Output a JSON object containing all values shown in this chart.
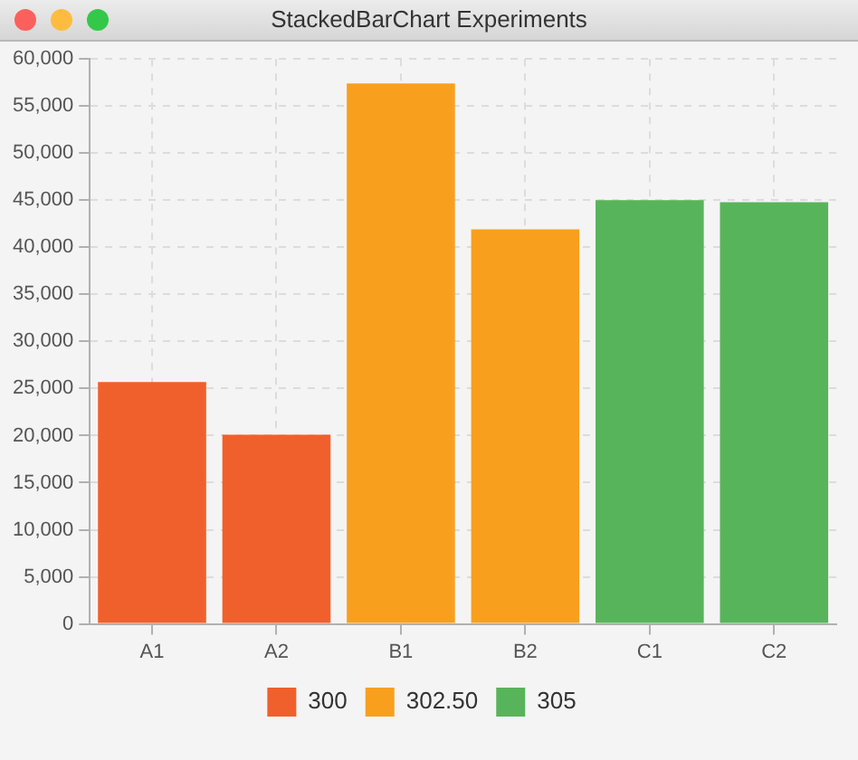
{
  "chart_data": {
    "type": "bar",
    "title": "StackedBarChart Experiments",
    "stacked": true,
    "categories": [
      "A1",
      "A2",
      "B1",
      "B2",
      "C1",
      "C2"
    ],
    "series": [
      {
        "name": "300",
        "color": "#f0602c",
        "values": [
          25700,
          20100,
          null,
          null,
          null,
          null
        ]
      },
      {
        "name": "302.50",
        "color": "#f8a01e",
        "values": [
          null,
          null,
          57400,
          41900,
          null,
          null
        ]
      },
      {
        "name": "305",
        "color": "#58b45a",
        "values": [
          null,
          null,
          null,
          null,
          45000,
          44800
        ]
      }
    ],
    "ylim": [
      0,
      60000
    ],
    "yticks": [
      {
        "value": 0,
        "label": "0"
      },
      {
        "value": 5000,
        "label": "5,000"
      },
      {
        "value": 10000,
        "label": "10,000"
      },
      {
        "value": 15000,
        "label": "15,000"
      },
      {
        "value": 20000,
        "label": "20,000"
      },
      {
        "value": 25000,
        "label": "25,000"
      },
      {
        "value": 30000,
        "label": "30,000"
      },
      {
        "value": 35000,
        "label": "35,000"
      },
      {
        "value": 40000,
        "label": "40,000"
      },
      {
        "value": 45000,
        "label": "45,000"
      },
      {
        "value": 50000,
        "label": "50,000"
      },
      {
        "value": 55000,
        "label": "55,000"
      },
      {
        "value": 60000,
        "label": "60,000"
      }
    ],
    "grid": true,
    "legend": "bottom"
  }
}
